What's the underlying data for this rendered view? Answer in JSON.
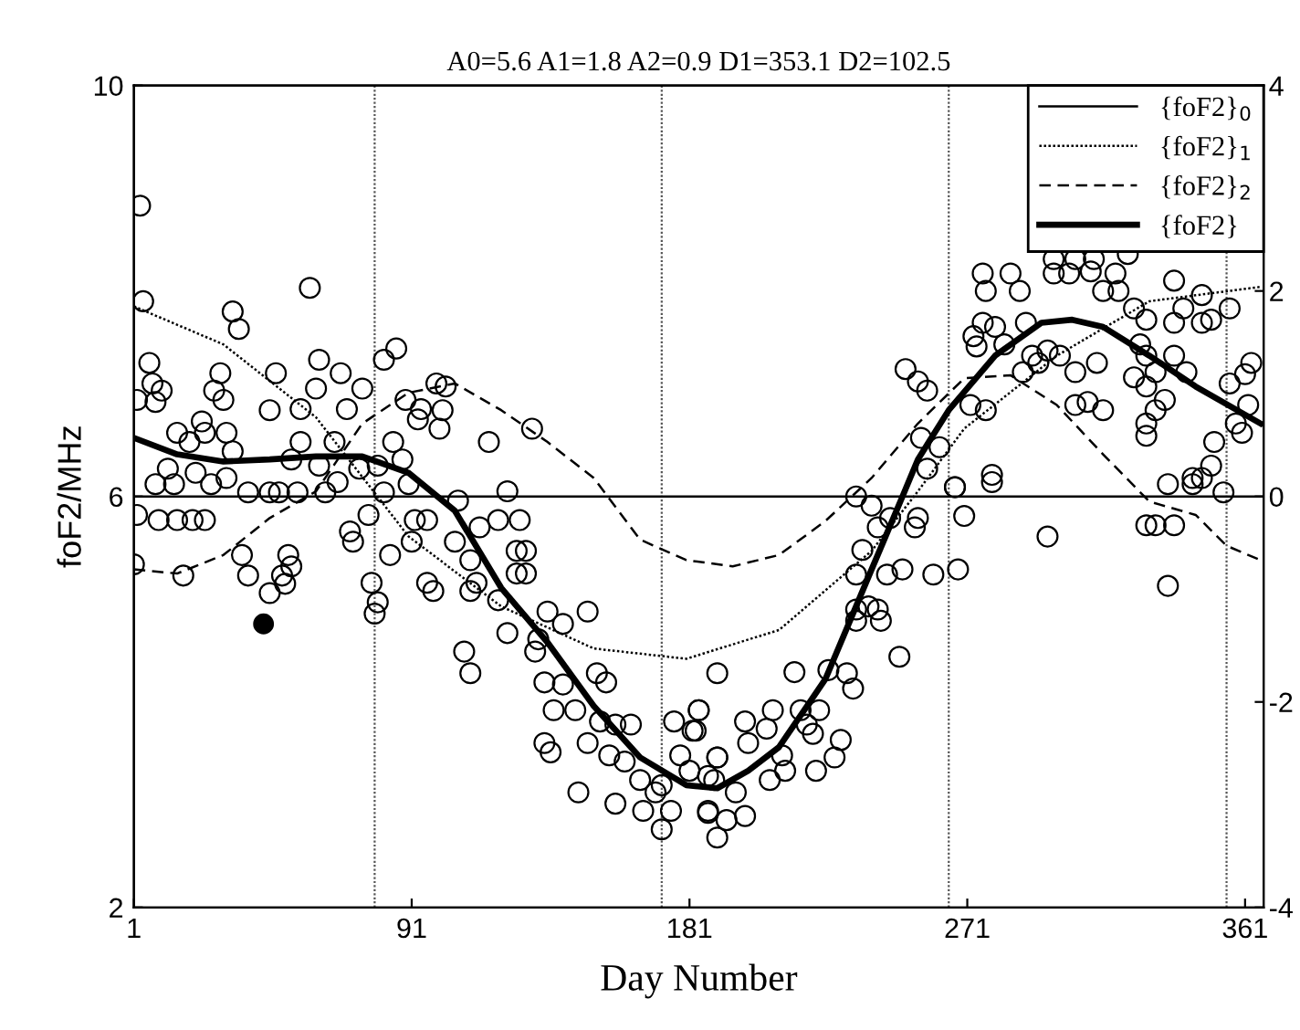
{
  "chart_data": {
    "type": "scatter",
    "title": "A0=5.6 A1=1.8 A2=0.9 D1=353.1 D2=102.5",
    "xlabel": "Day Number",
    "ylabel": "foF2/MHz",
    "xlim": [
      1,
      367
    ],
    "xticks": [
      1,
      91,
      181,
      271,
      361
    ],
    "ylim": [
      2,
      10
    ],
    "yticks": [
      2,
      6,
      10
    ],
    "y2lim": [
      -4,
      4
    ],
    "y2ticks": [
      -4,
      -2,
      0,
      2,
      4
    ],
    "grid": false,
    "legend": "top right",
    "ref_lines": [
      {
        "axis": "x",
        "value": 79,
        "color": "#555555",
        "line_style": "dotted"
      },
      {
        "axis": "x",
        "value": 172,
        "color": "#555555",
        "line_style": "dotted"
      },
      {
        "axis": "x",
        "value": 265,
        "color": "#555555",
        "line_style": "dotted"
      },
      {
        "axis": "x",
        "value": 355,
        "color": "#555555",
        "line_style": "dotted"
      }
    ],
    "series": [
      {
        "color": "#000000",
        "marker": "circle",
        "x": [
          3,
          4,
          33,
          35,
          58,
          6,
          7,
          10,
          2,
          8,
          29,
          27,
          30,
          47,
          45,
          61,
          68,
          60,
          55,
          86,
          82,
          75,
          70,
          23,
          24,
          15,
          19,
          31,
          33,
          12,
          8,
          14,
          21,
          26,
          31,
          38,
          45,
          48,
          54,
          55,
          52,
          61,
          66,
          67,
          63,
          74,
          80,
          88,
          85,
          94,
          93,
          101,
          100,
          89,
          102,
          99,
          116,
          130,
          122,
          90,
          82,
          106,
          2,
          9,
          15,
          20,
          24,
          1,
          17,
          36,
          38,
          45,
          51,
          52,
          49,
          50,
          71,
          72,
          77,
          78,
          80,
          79,
          84,
          91,
          96,
          92,
          96,
          98,
          105,
          110,
          112,
          110,
          119,
          113,
          119,
          126,
          125,
          128,
          125,
          128,
          108,
          110,
          122,
          135,
          140,
          148,
          132,
          131,
          134,
          140,
          151,
          154,
          137,
          144,
          152,
          157,
          162,
          134,
          136,
          148,
          155,
          160,
          165,
          172,
          170,
          145,
          157,
          166,
          172,
          175,
          176,
          184,
          182,
          178,
          181,
          190,
          187,
          190,
          189,
          215,
          184,
          183,
          199,
          206,
          208,
          200,
          217,
          223,
          219,
          221,
          230,
          228,
          222,
          190,
          187,
          196,
          207,
          212,
          211,
          187,
          193,
          199,
          190,
          226,
          232,
          234,
          249,
          235,
          239,
          242,
          243,
          235,
          235,
          245,
          250,
          237,
          260,
          268,
          242,
          246,
          254,
          255,
          270,
          297,
          329,
          332,
          338,
          336,
          235,
          240,
          267,
          279,
          336,
          344,
          354,
          276,
          277,
          285,
          288,
          299,
          306,
          299,
          304,
          311,
          319,
          315,
          320,
          323,
          312,
          338,
          341,
          347,
          356,
          350,
          347,
          338,
          325,
          329,
          276,
          273,
          274,
          280,
          283,
          290,
          297,
          301,
          294,
          306,
          313,
          327,
          329,
          338,
          342,
          332,
          329,
          325,
          315,
          306,
          310,
          332,
          335,
          329,
          329,
          363,
          361,
          356,
          362,
          358,
          360,
          351,
          350,
          344,
          347,
          279,
          267,
          258,
          255,
          251,
          256,
          262,
          258,
          272,
          277,
          292,
          289
        ],
        "values": [
          8.83,
          7.9,
          7.8,
          7.63,
          8.03,
          7.3,
          7.1,
          7.03,
          6.94,
          6.92,
          7.2,
          7.03,
          6.94,
          7.2,
          6.84,
          7.33,
          7.2,
          7.05,
          6.85,
          7.44,
          7.33,
          7.05,
          6.85,
          6.73,
          6.62,
          6.62,
          6.53,
          6.62,
          6.44,
          6.27,
          6.12,
          6.12,
          6.23,
          6.12,
          6.18,
          6.04,
          6.04,
          6.04,
          6.04,
          6.53,
          6.36,
          6.3,
          6.53,
          6.14,
          6.04,
          6.27,
          6.3,
          6.36,
          6.53,
          6.85,
          6.75,
          6.84,
          6.66,
          6.94,
          7.07,
          7.1,
          6.53,
          6.66,
          6.05,
          6.12,
          6.04,
          5.96,
          5.82,
          5.77,
          5.77,
          5.77,
          5.77,
          5.34,
          5.23,
          5.43,
          5.23,
          5.06,
          5.43,
          5.32,
          5.23,
          5.15,
          5.66,
          5.56,
          5.82,
          5.16,
          4.97,
          4.86,
          5.43,
          5.56,
          5.77,
          5.77,
          5.16,
          5.08,
          5.56,
          5.38,
          5.16,
          5.08,
          4.99,
          5.7,
          5.77,
          5.77,
          5.47,
          5.47,
          5.25,
          5.25,
          4.49,
          4.28,
          4.67,
          4.88,
          4.76,
          4.88,
          4.61,
          4.49,
          4.19,
          4.17,
          4.28,
          4.19,
          3.92,
          3.92,
          3.81,
          3.78,
          3.78,
          3.6,
          3.51,
          3.6,
          3.48,
          3.42,
          3.24,
          3.19,
          3.12,
          3.12,
          3.01,
          2.94,
          2.76,
          2.94,
          3.81,
          3.92,
          3.72,
          3.48,
          3.33,
          4.28,
          2.92,
          3.46,
          3.24,
          4.29,
          3.92,
          3.72,
          3.81,
          3.74,
          3.92,
          3.6,
          3.92,
          3.92,
          3.78,
          3.69,
          3.63,
          3.46,
          3.33,
          3.46,
          3.28,
          3.12,
          3.24,
          3.33,
          3.48,
          2.94,
          2.85,
          2.89,
          2.68,
          4.31,
          4.28,
          4.13,
          4.44,
          4.9,
          4.93,
          4.9,
          4.79,
          4.79,
          5.24,
          5.24,
          5.29,
          5.48,
          5.24,
          5.29,
          5.7,
          5.79,
          5.7,
          5.79,
          5.81,
          5.61,
          5.72,
          5.72,
          5.72,
          5.13,
          6.0,
          5.91,
          6.09,
          6.14,
          6.12,
          6.12,
          6.04,
          8.17,
          8.0,
          8.17,
          8.0,
          8.31,
          8.31,
          8.17,
          8.17,
          8.19,
          8.17,
          8.0,
          8.0,
          8.36,
          8.31,
          8.1,
          7.83,
          7.96,
          7.83,
          7.72,
          7.69,
          7.69,
          7.83,
          7.72,
          7.69,
          7.56,
          7.46,
          7.65,
          7.48,
          7.69,
          7.42,
          7.37,
          7.3,
          7.21,
          7.3,
          7.48,
          7.37,
          7.37,
          7.21,
          7.21,
          7.07,
          7.16,
          6.84,
          6.89,
          6.92,
          6.84,
          6.94,
          6.71,
          6.59,
          7.3,
          7.19,
          7.1,
          6.89,
          6.71,
          6.62,
          6.53,
          6.3,
          6.18,
          6.18,
          6.21,
          6.09,
          7.03,
          7.12,
          7.24,
          6.57,
          6.48,
          6.27,
          6.89,
          6.84,
          7.37,
          7.21
        ]
      },
      {
        "type": "scatter",
        "colors": [
          "#000000"
        ],
        "marker": "circle",
        "x": [
          43
        ],
        "values": [
          4.76
        ]
      },
      {
        "type": "line",
        "name": "{foF2}$_{0}$",
        "color": "#000000",
        "line_style": "solid",
        "axis": "y2",
        "x": [
          1,
          367
        ],
        "values": [
          0,
          0
        ]
      },
      {
        "type": "line",
        "name": "{foF2}$_{1}$",
        "color": "#000000",
        "line_style": "dotted",
        "axis": "y2",
        "x": [
          1,
          30,
          60,
          90,
          120,
          150,
          180,
          210,
          240,
          255,
          270,
          300,
          330,
          366
        ],
        "values": [
          1.85,
          1.48,
          0.77,
          -0.39,
          -1.07,
          -1.48,
          -1.58,
          -1.3,
          -0.53,
          0.05,
          0.66,
          1.37,
          1.9,
          2.04
        ]
      },
      {
        "type": "line",
        "name": "{foF2}$_{2}$",
        "color": "#000000",
        "line_style": "dashed",
        "axis": "y2",
        "x": [
          1,
          15,
          30,
          45,
          60,
          75,
          90,
          105,
          120,
          135,
          150,
          165,
          180,
          195,
          210,
          225,
          240,
          255,
          270,
          285,
          300,
          315,
          330,
          345,
          355,
          366
        ],
        "values": [
          -0.71,
          -0.75,
          -0.57,
          -0.21,
          0.05,
          0.71,
          1.01,
          1.1,
          0.84,
          0.53,
          0.18,
          -0.42,
          -0.62,
          -0.68,
          -0.57,
          -0.24,
          0.18,
          0.71,
          1.15,
          1.18,
          0.89,
          0.41,
          -0.05,
          -0.18,
          -0.48,
          -0.62
        ]
      },
      {
        "type": "line",
        "name": "{foF2}",
        "color": "#000000",
        "line_style": "solid",
        "x": [
          1,
          15,
          30,
          45,
          60,
          75,
          90,
          105,
          120,
          135,
          150,
          165,
          180,
          190,
          200,
          210,
          225,
          240,
          250,
          255,
          265,
          280,
          295,
          305,
          315,
          330,
          345,
          366
        ],
        "values": [
          6.57,
          6.41,
          6.34,
          6.36,
          6.39,
          6.39,
          6.23,
          5.86,
          5.11,
          4.58,
          3.96,
          3.46,
          3.19,
          3.16,
          3.33,
          3.56,
          4.22,
          5.29,
          6.0,
          6.36,
          6.84,
          7.37,
          7.69,
          7.72,
          7.65,
          7.37,
          7.07,
          6.71
        ]
      }
    ]
  }
}
